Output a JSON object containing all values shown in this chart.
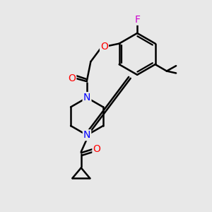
{
  "background_color": "#e8e8e8",
  "bond_color": "#000000",
  "bond_width": 1.8,
  "atom_colors": {
    "O": "#ff0000",
    "N": "#0000ff",
    "F": "#cc00cc",
    "C": "#000000"
  },
  "figsize": [
    3.0,
    3.0
  ],
  "dpi": 100
}
